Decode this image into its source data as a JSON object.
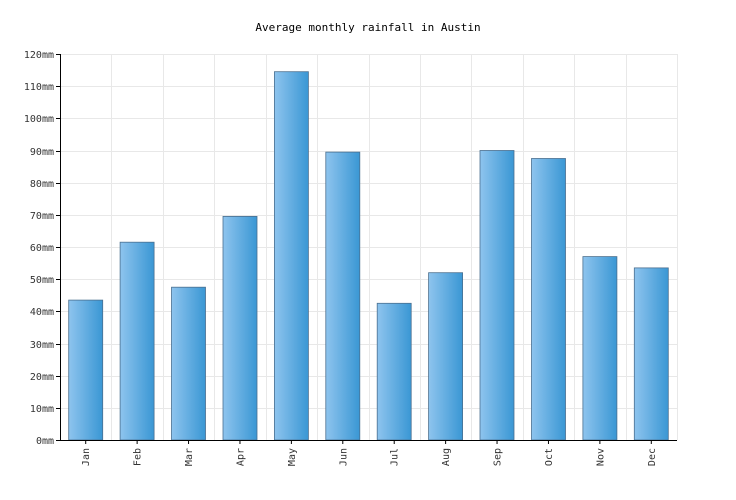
{
  "chart_data": {
    "type": "bar",
    "title": "Average monthly rainfall in Austin",
    "categories": [
      "Jan",
      "Feb",
      "Mar",
      "Apr",
      "May",
      "Jun",
      "Jul",
      "Aug",
      "Sep",
      "Oct",
      "Nov",
      "Dec"
    ],
    "values": [
      43.5,
      61.5,
      47.5,
      69.5,
      114.5,
      89.5,
      42.5,
      52,
      90,
      87.5,
      57,
      53.5
    ],
    "unit": "mm",
    "ylim": [
      0,
      120
    ],
    "yticks": [
      "0mm",
      "10mm",
      "20mm",
      "30mm",
      "40mm",
      "50mm",
      "60mm",
      "70mm",
      "80mm",
      "90mm",
      "100mm",
      "110mm",
      "120mm"
    ],
    "grid": true,
    "colors": {
      "bar_light": "#8ec4ee",
      "bar_dark": "#3a97d4",
      "bar_stroke": "#4a6f8f"
    }
  }
}
